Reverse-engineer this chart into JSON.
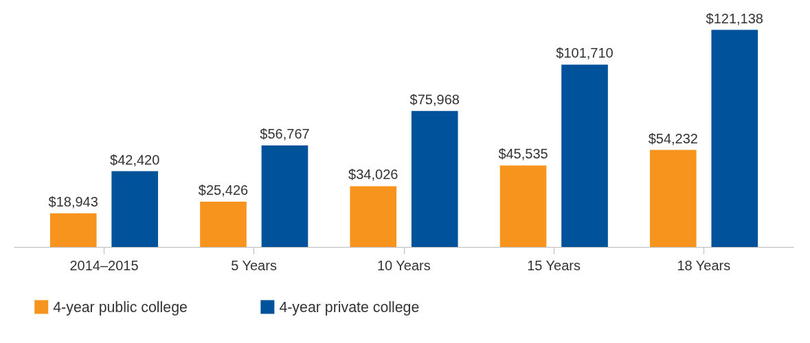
{
  "chart_data": {
    "type": "bar",
    "categories": [
      "2014–2015",
      "5 Years",
      "10 Years",
      "15 Years",
      "18 Years"
    ],
    "series": [
      {
        "name": "4-year public college",
        "color": "#f7941d",
        "values": [
          18943,
          25426,
          34026,
          45535,
          54232
        ],
        "value_labels": [
          "$18,943",
          "$25,426",
          "$34,026",
          "$45,535",
          "$54,232"
        ]
      },
      {
        "name": "4-year private college",
        "color": "#00529b",
        "values": [
          42420,
          56767,
          75968,
          101710,
          121138
        ],
        "value_labels": [
          "$42,420",
          "$56,767",
          "$75,968",
          "$101,710",
          "$121,138"
        ]
      }
    ],
    "legend": "bottom left"
  }
}
